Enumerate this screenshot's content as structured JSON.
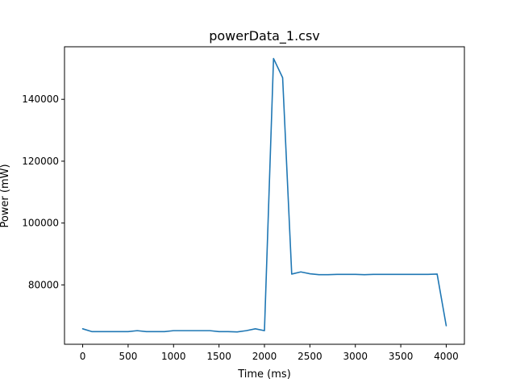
{
  "chart_data": {
    "type": "line",
    "title": "powerData_1.csv",
    "xlabel": "Time (ms)",
    "ylabel": "Power (mW)",
    "xlim": [
      -200,
      4200
    ],
    "ylim": [
      60800,
      157000
    ],
    "xticks": [
      0,
      500,
      1000,
      1500,
      2000,
      2500,
      3000,
      3500,
      4000
    ],
    "yticks": [
      80000,
      100000,
      120000,
      140000
    ],
    "ytick_labels": [
      "80000",
      "100000",
      "120000",
      "140000"
    ],
    "grid": false,
    "series": [
      {
        "color": "#1f77b4",
        "x": [
          0,
          100,
          200,
          300,
          400,
          500,
          600,
          700,
          800,
          900,
          1000,
          1100,
          1200,
          1300,
          1400,
          1500,
          1600,
          1700,
          1800,
          1900,
          2000,
          2100,
          2200,
          2300,
          2400,
          2500,
          2600,
          2700,
          2800,
          2900,
          3000,
          3100,
          3200,
          3300,
          3400,
          3500,
          3600,
          3700,
          3800,
          3900,
          4000
        ],
        "y": [
          65800,
          64900,
          64900,
          64900,
          64900,
          64900,
          65200,
          64900,
          64900,
          64900,
          65200,
          65200,
          65200,
          65200,
          65200,
          64900,
          64900,
          64800,
          65200,
          65800,
          65200,
          153200,
          147000,
          83500,
          84200,
          83600,
          83300,
          83300,
          83400,
          83400,
          83400,
          83300,
          83400,
          83400,
          83400,
          83400,
          83400,
          83400,
          83400,
          83500,
          66800
        ]
      }
    ]
  }
}
